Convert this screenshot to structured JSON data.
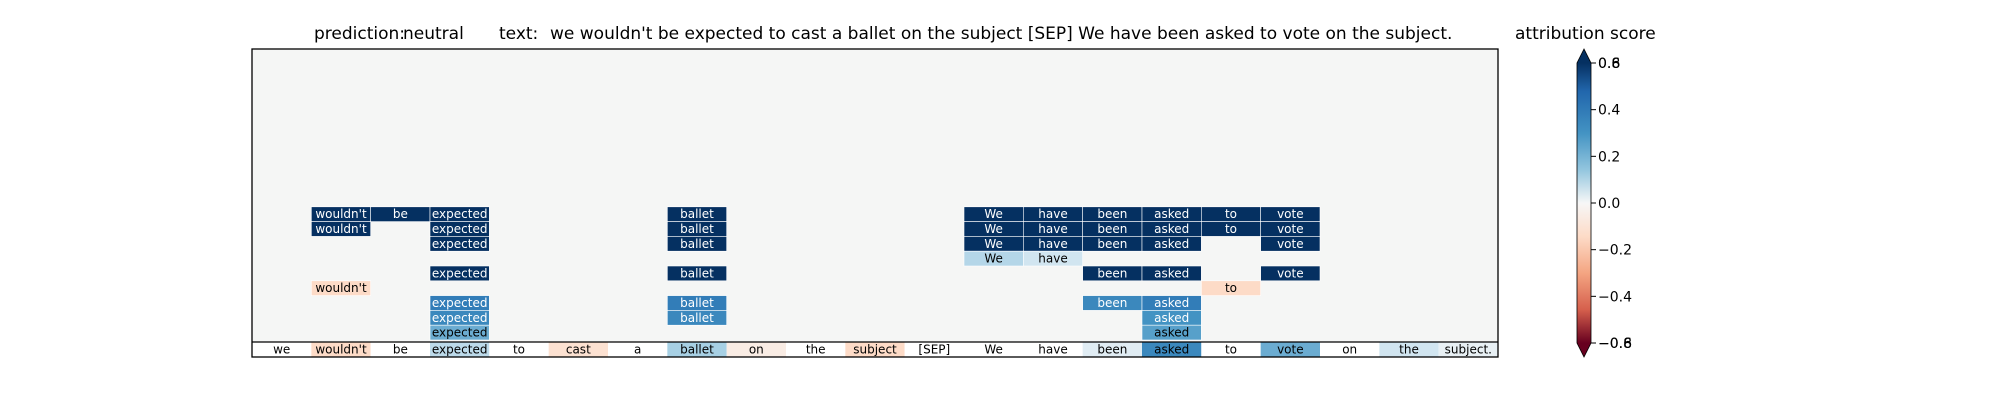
{
  "header": {
    "prediction_label": "prediction:",
    "prediction_value": "neutral",
    "text_label": "text:",
    "text_value": "we wouldn't be expected to cast a ballet on the subject [SEP] We have been asked to vote on the subject."
  },
  "colorbar": {
    "title": "attribution score",
    "ticks": [
      "0.6",
      "0.4",
      "0.2",
      "0.0",
      "−0.2",
      "−0.4",
      "−0.6"
    ],
    "tick_values": [
      0.6,
      0.4,
      0.2,
      0.0,
      -0.2,
      -0.4,
      -0.6
    ],
    "top_overlap_label": "0.8",
    "bottom_overlap_label": "−0.8",
    "range": [
      -0.6,
      0.6
    ]
  },
  "chart_data": {
    "type": "heatmap",
    "tokens": [
      "we",
      "wouldn't",
      "be",
      "expected",
      "to",
      "cast",
      "a",
      "ballet",
      "on",
      "the",
      "subject",
      "[SEP]",
      "We",
      "have",
      "been",
      "asked",
      "to",
      "vote",
      "on",
      "the",
      "subject."
    ],
    "bottom_row_values": [
      0.0,
      -0.05,
      0.0,
      0.1,
      0.0,
      -0.04,
      0.0,
      0.15,
      -0.02,
      0.0,
      -0.05,
      0.0,
      0.0,
      0.0,
      0.03,
      0.45,
      0.0,
      0.3,
      0.0,
      0.05,
      0.02
    ],
    "layers": [
      {
        "level": 9,
        "cells": [
          {
            "col": 1,
            "value": 0.8
          },
          {
            "col": 2,
            "value": 0.8
          },
          {
            "col": 3,
            "value": 0.8
          },
          {
            "col": 7,
            "value": 0.8
          },
          {
            "col": 12,
            "value": 0.8
          },
          {
            "col": 13,
            "value": 0.8
          },
          {
            "col": 14,
            "value": 0.8
          },
          {
            "col": 15,
            "value": 0.8
          },
          {
            "col": 16,
            "value": 0.8
          },
          {
            "col": 17,
            "value": 0.8
          }
        ]
      },
      {
        "level": 8,
        "cells": [
          {
            "col": 1,
            "value": 0.8
          },
          {
            "col": 3,
            "value": 0.8
          },
          {
            "col": 7,
            "value": 0.8
          },
          {
            "col": 12,
            "value": 0.8
          },
          {
            "col": 13,
            "value": 0.8
          },
          {
            "col": 14,
            "value": 0.8
          },
          {
            "col": 15,
            "value": 0.8
          },
          {
            "col": 16,
            "value": 0.8
          },
          {
            "col": 17,
            "value": 0.8
          }
        ]
      },
      {
        "level": 7,
        "cells": [
          {
            "col": 3,
            "value": 0.8
          },
          {
            "col": 7,
            "value": 0.8
          },
          {
            "col": 12,
            "value": 0.8
          },
          {
            "col": 13,
            "value": 0.8
          },
          {
            "col": 14,
            "value": 0.8
          },
          {
            "col": 15,
            "value": 0.8
          },
          {
            "col": 17,
            "value": 0.8
          }
        ]
      },
      {
        "level": 6,
        "cells": [
          {
            "col": 12,
            "value": 0.12
          },
          {
            "col": 13,
            "value": 0.05
          }
        ]
      },
      {
        "level": 5,
        "cells": [
          {
            "col": 3,
            "value": 0.8
          },
          {
            "col": 7,
            "value": 0.8
          },
          {
            "col": 14,
            "value": 0.8
          },
          {
            "col": 15,
            "value": 0.8
          },
          {
            "col": 17,
            "value": 0.8
          }
        ]
      },
      {
        "level": 4,
        "cells": [
          {
            "col": 1,
            "value": -0.05
          },
          {
            "col": 16,
            "value": -0.05
          }
        ]
      },
      {
        "level": 3,
        "cells": [
          {
            "col": 3,
            "value": 0.5
          },
          {
            "col": 7,
            "value": 0.5
          },
          {
            "col": 14,
            "value": 0.45
          },
          {
            "col": 15,
            "value": 0.5
          }
        ]
      },
      {
        "level": 2,
        "cells": [
          {
            "col": 3,
            "value": 0.45
          },
          {
            "col": 7,
            "value": 0.45
          },
          {
            "col": 15,
            "value": 0.4
          }
        ]
      },
      {
        "level": 1,
        "cells": [
          {
            "col": 3,
            "value": 0.3
          },
          {
            "col": 15,
            "value": 0.35
          }
        ]
      }
    ],
    "xlim": [
      0,
      21
    ],
    "grid": false
  }
}
